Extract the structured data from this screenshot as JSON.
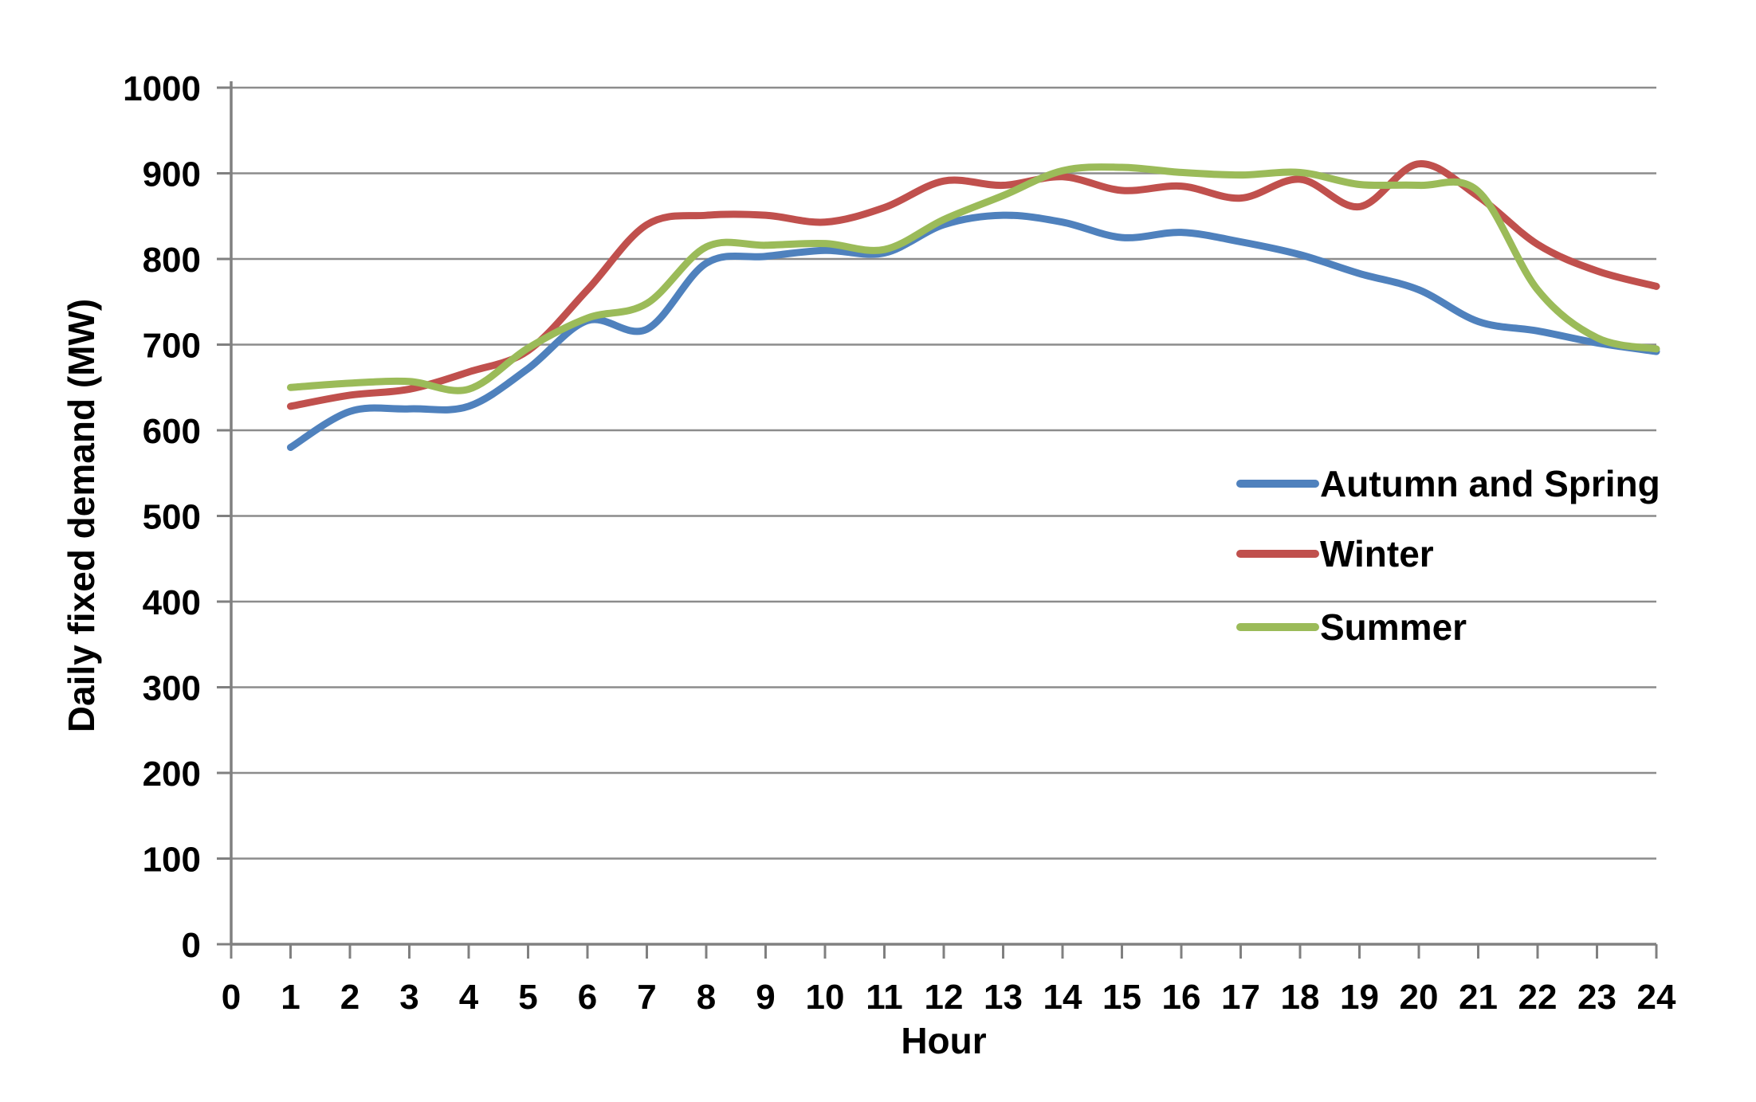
{
  "figure": {
    "background_color": "#ffffff",
    "text_color": "#000000",
    "gridline_color": "#8c8c8c",
    "axis_color": "#808080"
  },
  "chart_data": {
    "type": "line",
    "title": "",
    "xlabel": "Hour",
    "ylabel": "Daily fixed demand (MW)",
    "xlim": [
      0,
      24
    ],
    "ylim": [
      0,
      1000
    ],
    "x_ticks": [
      0,
      1,
      2,
      3,
      4,
      5,
      6,
      7,
      8,
      9,
      10,
      11,
      12,
      13,
      14,
      15,
      16,
      17,
      18,
      19,
      20,
      21,
      22,
      23,
      24
    ],
    "y_ticks": [
      0,
      100,
      200,
      300,
      400,
      500,
      600,
      700,
      800,
      900,
      1000
    ],
    "grid": "horizontal",
    "legend_position": "inside-right",
    "line_style": "smooth",
    "x": [
      1,
      2,
      3,
      4,
      5,
      6,
      7,
      8,
      9,
      10,
      11,
      12,
      13,
      14,
      15,
      16,
      17,
      18,
      19,
      20,
      21,
      22,
      23,
      24
    ],
    "series": [
      {
        "name": "Autumn and Spring",
        "color": "#4F81BD",
        "values": [
          580,
          622,
          625,
          628,
          672,
          728,
          718,
          795,
          803,
          810,
          807,
          840,
          851,
          843,
          825,
          831,
          820,
          805,
          783,
          764,
          727,
          716,
          702,
          692
        ]
      },
      {
        "name": "Winter",
        "color": "#C0504D",
        "values": [
          628,
          641,
          648,
          668,
          693,
          764,
          840,
          851,
          851,
          843,
          860,
          891,
          886,
          896,
          880,
          885,
          871,
          893,
          861,
          911,
          873,
          817,
          786,
          768
        ]
      },
      {
        "name": "Summer",
        "color": "#9BBB59",
        "values": [
          650,
          655,
          657,
          648,
          696,
          731,
          748,
          814,
          816,
          818,
          811,
          846,
          874,
          903,
          907,
          901,
          898,
          901,
          887,
          886,
          879,
          764,
          708,
          695
        ]
      }
    ]
  }
}
